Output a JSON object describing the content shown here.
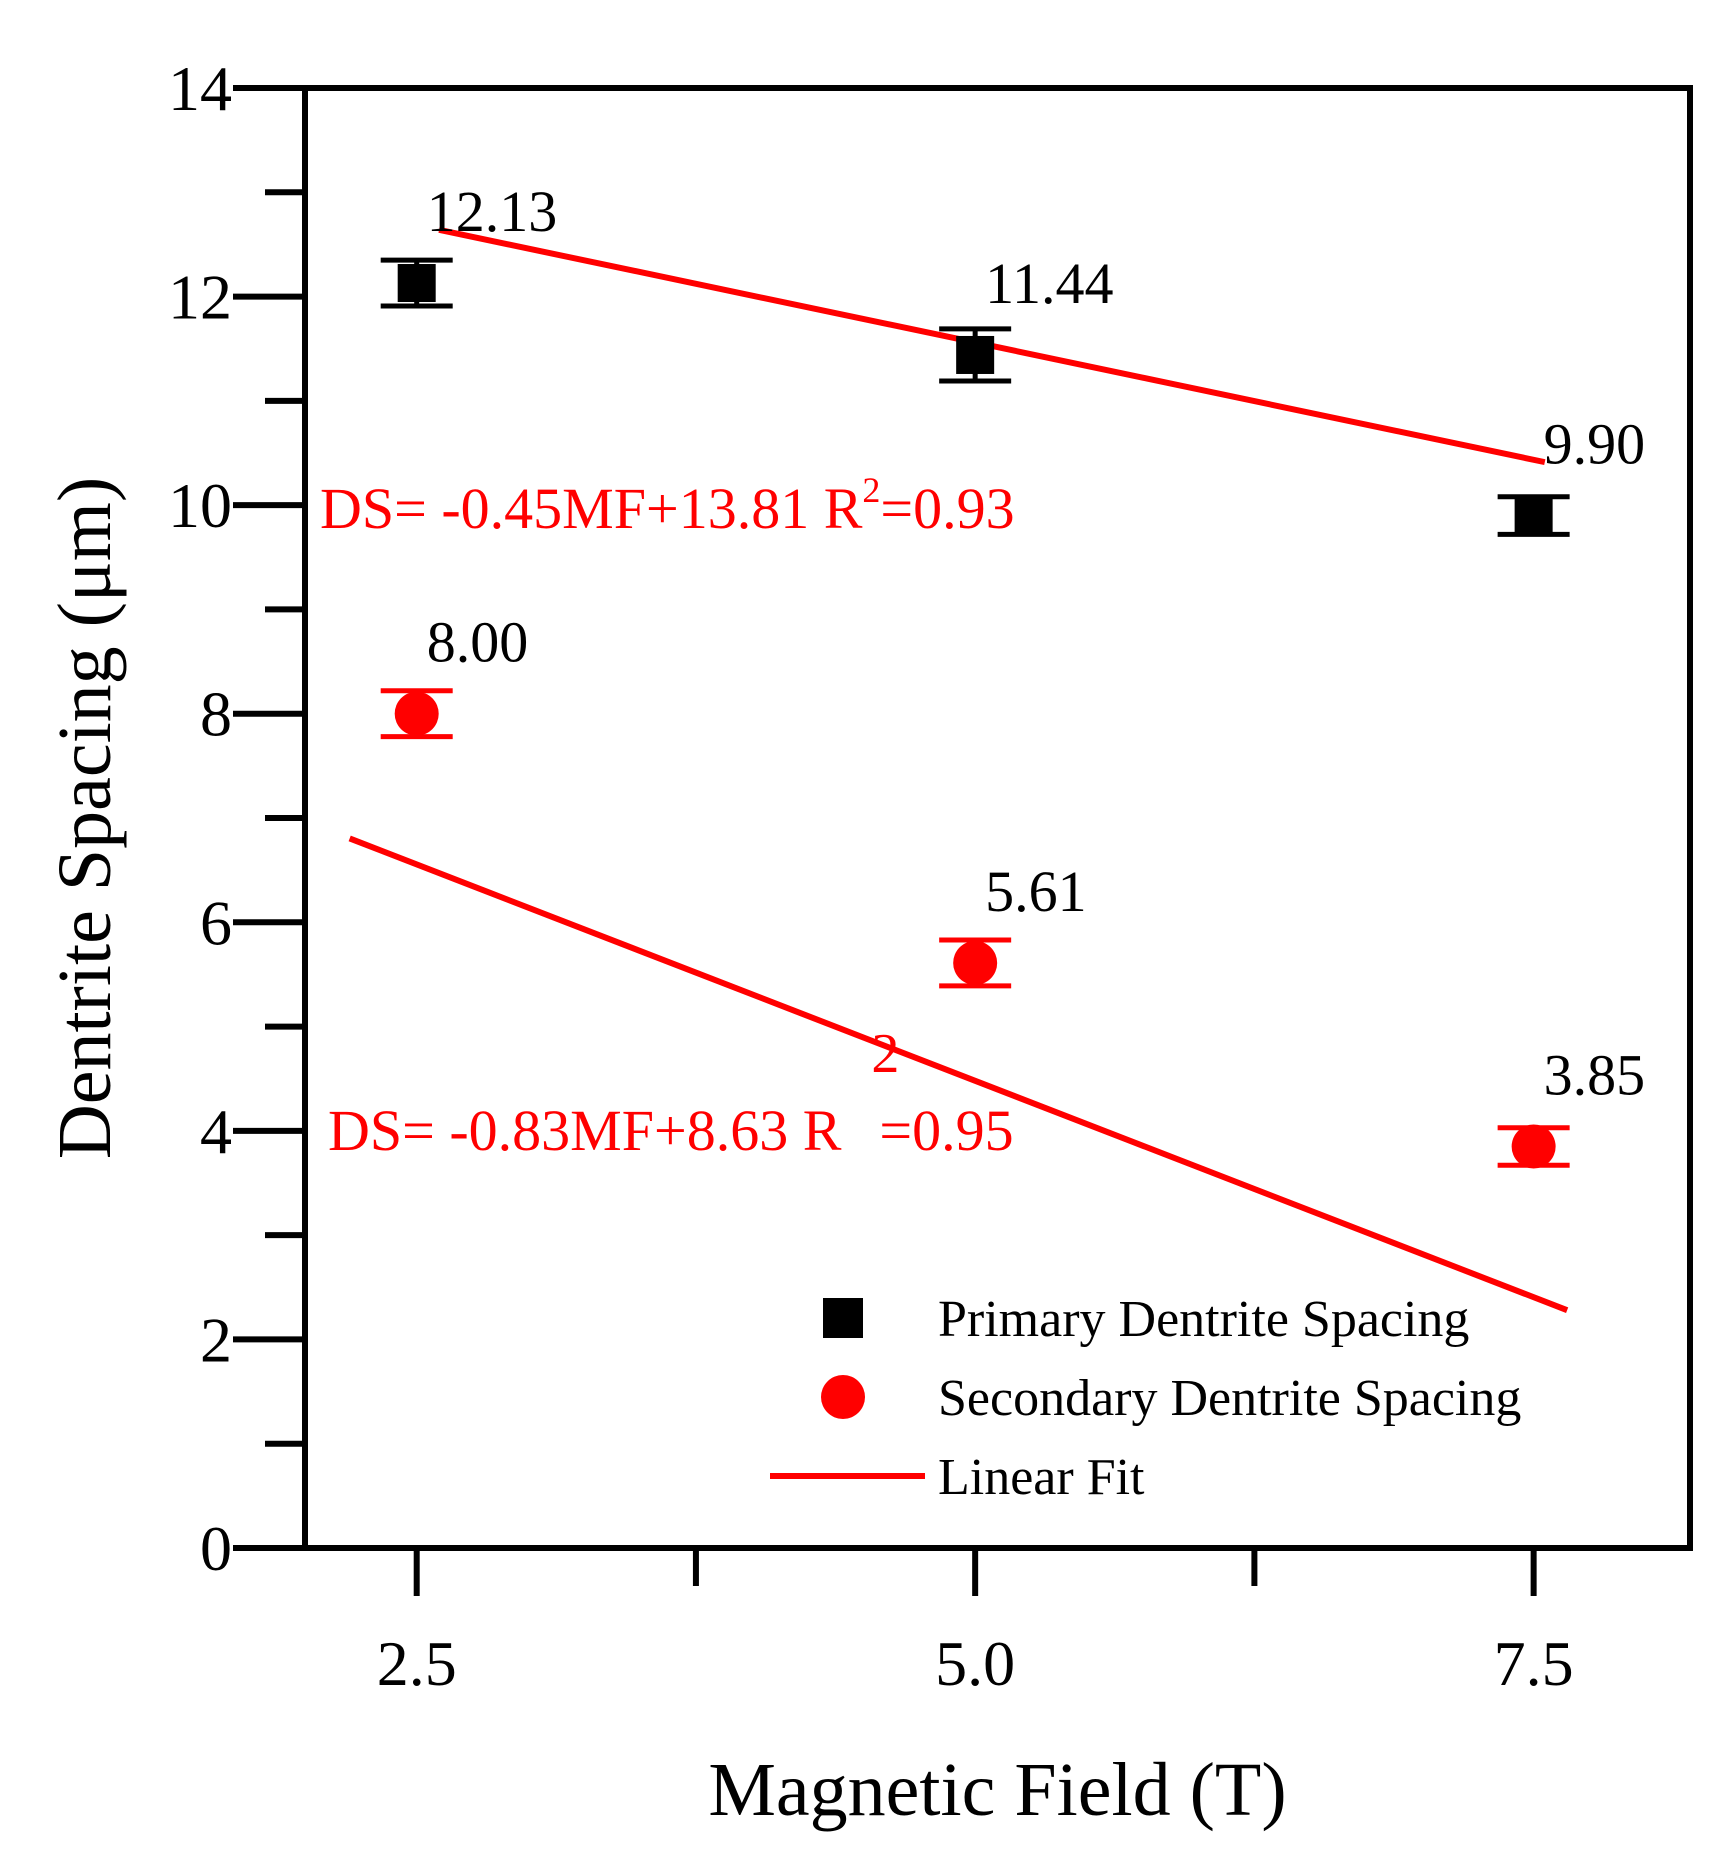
{
  "chart_data": {
    "type": "scatter",
    "title": "",
    "xlabel": "Magnetic Field (T)",
    "ylabel": "Dentrite Spacing (μm)",
    "xlim": [
      2.0,
      8.2
    ],
    "ylim": [
      0,
      14
    ],
    "x_ticks": [
      "2.5",
      "5.0",
      "7.5"
    ],
    "y_ticks": [
      "0",
      "2",
      "4",
      "6",
      "8",
      "10",
      "12",
      "14"
    ],
    "grid": false,
    "legend_position": "bottom-right",
    "series": [
      {
        "name": "Primary Dentrite Spacing",
        "marker": "square",
        "color": "#000000",
        "x": [
          2.5,
          5.0,
          7.5
        ],
        "values": [
          12.13,
          11.44,
          9.9
        ],
        "errors": [
          0.22,
          0.25,
          0.18
        ],
        "labels": [
          "12.13",
          "11.44",
          "9.90"
        ]
      },
      {
        "name": "Secondary Dentrite Spacing",
        "marker": "circle",
        "color": "#ff0000",
        "x": [
          2.5,
          5.0,
          7.5
        ],
        "values": [
          8.0,
          5.61,
          3.85
        ],
        "errors": [
          0.22,
          0.22,
          0.18
        ],
        "labels": [
          "8.00",
          "5.61",
          "3.85"
        ]
      }
    ],
    "fits": [
      {
        "name": "Linear Fit",
        "color": "#ff0000",
        "slope": -0.45,
        "intercept": 13.81,
        "x_range": [
          2.6,
          7.55
        ],
        "equation_prefix": "DS= -0.45MF+13.81  R",
        "equation_sup": "2",
        "equation_suffix": "=0.93"
      },
      {
        "name": "Linear Fit",
        "color": "#ff0000",
        "slope": -0.83,
        "intercept": 8.63,
        "x_range": [
          2.2,
          7.65
        ],
        "equation_prefix": "DS= -0.83MF+8.63  R",
        "equation_sup": "2",
        "equation_suffix": "=0.95"
      }
    ],
    "legend": [
      {
        "label": "Primary Dentrite Spacing",
        "symbol": "square",
        "color": "#000000"
      },
      {
        "label": "Secondary Dentrite Spacing",
        "symbol": "circle",
        "color": "#ff0000"
      },
      {
        "label": "Linear Fit",
        "symbol": "line",
        "color": "#ff0000"
      }
    ]
  }
}
